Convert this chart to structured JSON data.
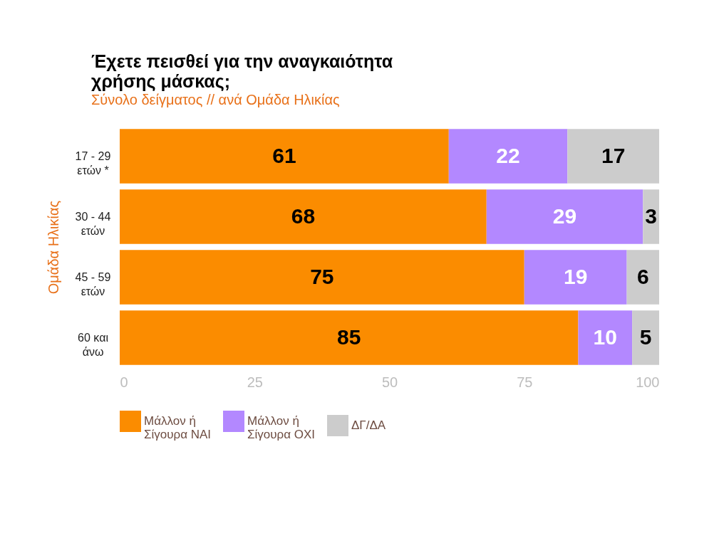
{
  "chart_data": {
    "type": "bar",
    "orientation": "horizontal",
    "stacked": true,
    "title": "Έχετε πεισθεί για την αναγκαιότητα χρήσης μάσκας;",
    "subtitle": "Σύνολο δείγματος // ανά Ομάδα Ηλικίας",
    "ylabel": "Ομάδα Ηλικίας",
    "categories": [
      "17 - 29 ετών *",
      "30 - 44 ετών",
      "45 - 59 ετών",
      "60 και άνω"
    ],
    "series": [
      {
        "name": "Μάλλον ή Σίγουρα ΝΑΙ",
        "color": "#fb8c00",
        "values": [
          61,
          68,
          75,
          85
        ]
      },
      {
        "name": "Μάλλον ή Σίγουρα ΟΧΙ",
        "color": "#b388ff",
        "values": [
          22,
          29,
          19,
          10
        ]
      },
      {
        "name": "ΔΓ/ΔΑ",
        "color": "#cccccc",
        "values": [
          17,
          3,
          6,
          5
        ]
      }
    ],
    "xlim": [
      0,
      100
    ],
    "xticks": [
      0,
      25,
      50,
      75,
      100
    ],
    "grid": false,
    "legend": "bottom",
    "data_labels": true
  }
}
